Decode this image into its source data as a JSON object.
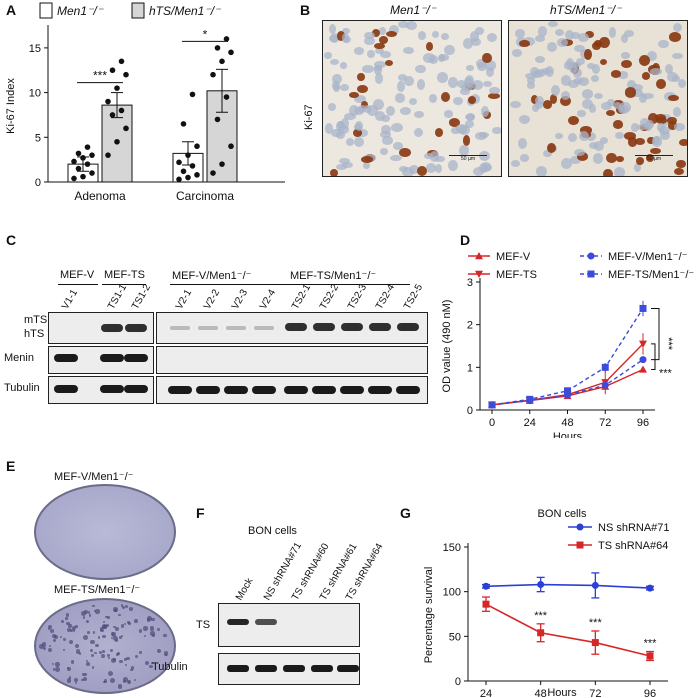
{
  "panels": {
    "A": "A",
    "B": "B",
    "C": "C",
    "D": "D",
    "E": "E",
    "F": "F",
    "G": "G"
  },
  "chart_data": [
    {
      "id": "A",
      "type": "bar",
      "legend": [
        "Men1⁻/⁻",
        "hTS/Men1⁻/⁻"
      ],
      "categories": [
        "Adenoma",
        "Carcinoma"
      ],
      "ylabel": "Ki-67 Index",
      "ylim": [
        0,
        17
      ],
      "yticks": [
        "0",
        "5",
        "10",
        "15"
      ],
      "series": [
        {
          "name": "Men1⁻/⁻",
          "color": "#ffffff",
          "values": [
            2.0,
            3.2
          ],
          "err": [
            0.8,
            1.3
          ],
          "points": [
            [
              0.4,
              0.6,
              1.0,
              1.5,
              2.0,
              2.3,
              2.7,
              3.0,
              3.2,
              3.9
            ],
            [
              0.3,
              0.5,
              0.8,
              1.2,
              1.8,
              2.2,
              3.0,
              4.0,
              6.5,
              9.8
            ]
          ]
        },
        {
          "name": "hTS/Men1⁻/⁻",
          "color": "#d6d6d6",
          "values": [
            8.6,
            10.2
          ],
          "err": [
            1.4,
            2.4
          ],
          "points": [
            [
              3.0,
              4.5,
              6.0,
              7.5,
              8.0,
              9.0,
              10.5,
              12.0,
              12.5,
              13.5
            ],
            [
              1.0,
              2.0,
              4.0,
              7.0,
              9.5,
              12.0,
              13.5,
              14.5,
              15.0,
              16.0
            ]
          ]
        }
      ],
      "significance": [
        "***",
        "*"
      ]
    },
    {
      "id": "D",
      "type": "line",
      "ylabel": "OD value (490 nM)",
      "xlabel": "Hours",
      "x": [
        0,
        24,
        48,
        72,
        96
      ],
      "ylim": [
        0,
        3
      ],
      "yticks": [
        "0",
        "1",
        "2",
        "3"
      ],
      "series": [
        {
          "name": "MEF-V",
          "color": "#d62728",
          "values": [
            0.12,
            0.22,
            0.33,
            0.55,
            0.95
          ],
          "err": [
            0.02,
            0.03,
            0.03,
            0.06,
            0.06
          ]
        },
        {
          "name": "MEF-TS",
          "color": "#d62728",
          "values": [
            0.12,
            0.23,
            0.36,
            0.65,
            1.55
          ],
          "err": [
            0.02,
            0.03,
            0.04,
            0.28,
            0.25
          ]
        },
        {
          "name": "MEF-V/Men1⁻/⁻",
          "color": "#3c4bd8",
          "values": [
            0.12,
            0.22,
            0.35,
            0.58,
            1.18
          ],
          "err": [
            0.02,
            0.03,
            0.03,
            0.05,
            0.06
          ]
        },
        {
          "name": "MEF-TS/Men1⁻/⁻",
          "color": "#3c4bd8",
          "values": [
            0.12,
            0.25,
            0.45,
            1.0,
            2.38
          ],
          "err": [
            0.02,
            0.03,
            0.04,
            0.1,
            0.18
          ]
        }
      ],
      "significance": [
        "***",
        "***"
      ]
    },
    {
      "id": "G",
      "type": "line",
      "title": "BON cells",
      "ylabel": "Percentage survival",
      "xlabel": "Hours",
      "x": [
        24,
        48,
        72,
        96
      ],
      "ylim": [
        0,
        150
      ],
      "yticks": [
        "0",
        "50",
        "100",
        "150"
      ],
      "series": [
        {
          "name": "NS shRNA#71",
          "color": "#2b3fd6",
          "values": [
            106,
            108,
            107,
            104
          ],
          "err": [
            2,
            8,
            14,
            2
          ]
        },
        {
          "name": "TS shRNA#64",
          "color": "#d62728",
          "values": [
            86,
            54,
            43,
            28
          ],
          "err": [
            8,
            10,
            13,
            5
          ]
        }
      ],
      "significance": [
        "***",
        "***",
        "***"
      ]
    }
  ],
  "panelB": {
    "left_title": "Men1⁻/⁻",
    "right_title": "hTS/Men1⁻/⁻",
    "ylabel": "Ki-67",
    "scale": "50 µm"
  },
  "panelC": {
    "groups": [
      "MEF-V",
      "MEF-TS",
      "MEF-V/Men1⁻/⁻",
      "MEF-TS/Men1⁻/⁻"
    ],
    "lanes": [
      "V1-1",
      "TS1-1",
      "TS1-2",
      "V2-1",
      "V2-2",
      "V2-3",
      "V2-4",
      "TS2-1",
      "TS2-2",
      "TS2-3",
      "TS2-4",
      "TS2-5"
    ],
    "rows": [
      "mTS",
      "hTS",
      "Menin",
      "Tubulin"
    ]
  },
  "panelE": {
    "top": "MEF-V/Men1⁻/⁻",
    "bottom": "MEF-TS/Men1⁻/⁻"
  },
  "panelF": {
    "title": "BON cells",
    "lanes": [
      "Mock",
      "NS shRNA#71",
      "TS shRNA#60",
      "TS shRNA#61",
      "TS shRNA#64"
    ],
    "rows": [
      "TS",
      "Tubulin"
    ]
  }
}
